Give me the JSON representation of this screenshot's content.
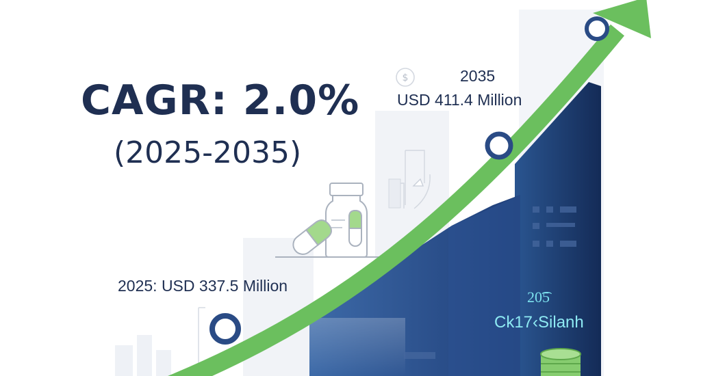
{
  "headline": {
    "cagr": "CAGR: 2.0%",
    "period": "(2025-2035)"
  },
  "chart_data": {
    "type": "bar",
    "categories": [
      "2025",
      "2035"
    ],
    "values": [
      337.5,
      411.4
    ],
    "unit": "USD Million",
    "annotations": {
      "start": "2025: USD 337.5 Million",
      "end_year": "2035",
      "end_value": "USD 411.4 Million"
    },
    "decorative_overlay": [
      "20͡5",
      "Ck17‹Silanh"
    ]
  },
  "colors": {
    "navy": "#1f3e78",
    "navy_dark": "#172c55",
    "green_arrow": "#6bbf5e",
    "text": "#1f2f52",
    "muted_bar": "#eef1f6",
    "outline": "#c8ced8",
    "overlay_text": "#7de3ef"
  },
  "icons": [
    "dollar-coin-icon",
    "medicine-bottle-icon",
    "capsule-icon",
    "coin-stack-icon",
    "line-chart-icon",
    "growth-arrow-icon"
  ]
}
